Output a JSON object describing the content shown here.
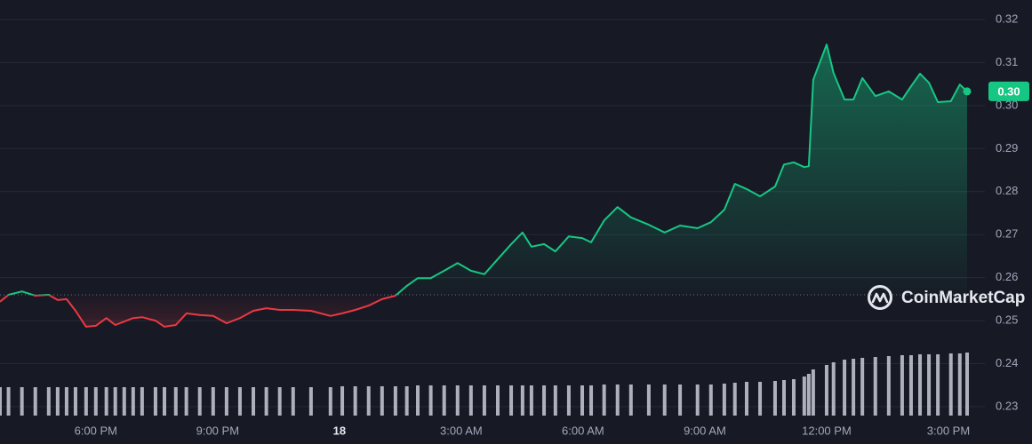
{
  "chart_data": {
    "type": "line",
    "x": [
      -8.36,
      -8.15,
      -7.82,
      -7.49,
      -7.16,
      -6.94,
      -6.72,
      -6.5,
      -6.24,
      -6.0,
      -5.74,
      -5.52,
      -5.3,
      -5.08,
      -4.86,
      -4.53,
      -4.31,
      -4.03,
      -3.77,
      -3.44,
      -3.11,
      -2.78,
      -2.45,
      -2.12,
      -1.8,
      -1.47,
      -1.14,
      -0.7,
      -0.22,
      0.07,
      0.39,
      0.72,
      1.05,
      1.38,
      1.66,
      1.93,
      2.25,
      2.58,
      2.91,
      3.24,
      3.57,
      3.9,
      4.23,
      4.51,
      4.73,
      5.04,
      5.32,
      5.65,
      5.98,
      6.2,
      6.52,
      6.85,
      7.18,
      7.62,
      8.01,
      8.39,
      8.82,
      9.15,
      9.48,
      9.74,
      10.03,
      10.36,
      10.73,
      10.95,
      11.19,
      11.45,
      11.56,
      11.67,
      12.0,
      12.17,
      12.44,
      12.66,
      12.88,
      13.2,
      13.53,
      13.86,
      14.08,
      14.3,
      14.52,
      14.74,
      15.06,
      15.28,
      15.46
    ],
    "values": [
      0.2544,
      0.256,
      0.2568,
      0.2558,
      0.256,
      0.2548,
      0.255,
      0.2523,
      0.2486,
      0.2488,
      0.2506,
      0.249,
      0.2498,
      0.2506,
      0.2508,
      0.25,
      0.2486,
      0.249,
      0.2517,
      0.2513,
      0.2511,
      0.2494,
      0.2506,
      0.2523,
      0.2529,
      0.2525,
      0.2525,
      0.2523,
      0.2511,
      0.2517,
      0.2525,
      0.2535,
      0.255,
      0.2558,
      0.2581,
      0.2599,
      0.2599,
      0.2616,
      0.2634,
      0.2616,
      0.2608,
      0.2643,
      0.2678,
      0.2705,
      0.2672,
      0.2678,
      0.2661,
      0.2696,
      0.2692,
      0.2682,
      0.2733,
      0.2764,
      0.274,
      0.2723,
      0.2705,
      0.2721,
      0.2715,
      0.2729,
      0.2758,
      0.2818,
      0.2806,
      0.2789,
      0.2812,
      0.2863,
      0.2868,
      0.2857,
      0.2859,
      0.306,
      0.3142,
      0.3076,
      0.3014,
      0.3014,
      0.3064,
      0.3022,
      0.3033,
      0.3014,
      0.3045,
      0.3074,
      0.3053,
      0.3008,
      0.301,
      0.3049,
      0.3033
    ],
    "volume": [
      32,
      32,
      32,
      32,
      32,
      32,
      32,
      32,
      32,
      32,
      32,
      32,
      32,
      32,
      32,
      32,
      32,
      32,
      32,
      32,
      32,
      32,
      32,
      32,
      32,
      32,
      32,
      32,
      32,
      33,
      33,
      33,
      33,
      33,
      33,
      34,
      34,
      34,
      34,
      34,
      34,
      34,
      34,
      34,
      34,
      34,
      34,
      34,
      34,
      34,
      35,
      35,
      35,
      35,
      35,
      35,
      35,
      35,
      36,
      37,
      38,
      38,
      39,
      40,
      41,
      44,
      47,
      52,
      57,
      60,
      63,
      64,
      65,
      66,
      67,
      68,
      68,
      69,
      69,
      69,
      70,
      70,
      71
    ],
    "volume_lim": [
      0,
      100
    ],
    "baseline": 0.256,
    "up_color": "#16c784",
    "down_color": "#ea3943",
    "volume_color": "#c9ccd6",
    "xlim": [
      -8.36,
      15.46
    ],
    "ylim": [
      0.23,
      0.32
    ],
    "yticks": [
      0.23,
      0.24,
      0.25,
      0.26,
      0.27,
      0.28,
      0.29,
      {
        "value": 0.3,
        "label": "0.30"
      },
      0.31,
      0.32
    ],
    "xticks": [
      {
        "value": -6,
        "label": "6:00 PM"
      },
      {
        "value": -3,
        "label": "9:00 PM"
      },
      {
        "value": 0,
        "label": "18"
      },
      {
        "value": 3,
        "label": "3:00 AM"
      },
      {
        "value": 6,
        "label": "6:00 AM"
      },
      {
        "value": 9,
        "label": "9:00 AM"
      },
      {
        "value": 12,
        "label": "12:00 PM"
      },
      {
        "value": 15,
        "label": "3:00 PM"
      }
    ],
    "grid": true,
    "last_price_label": "0.30",
    "watermark": "CoinMarketCap"
  }
}
